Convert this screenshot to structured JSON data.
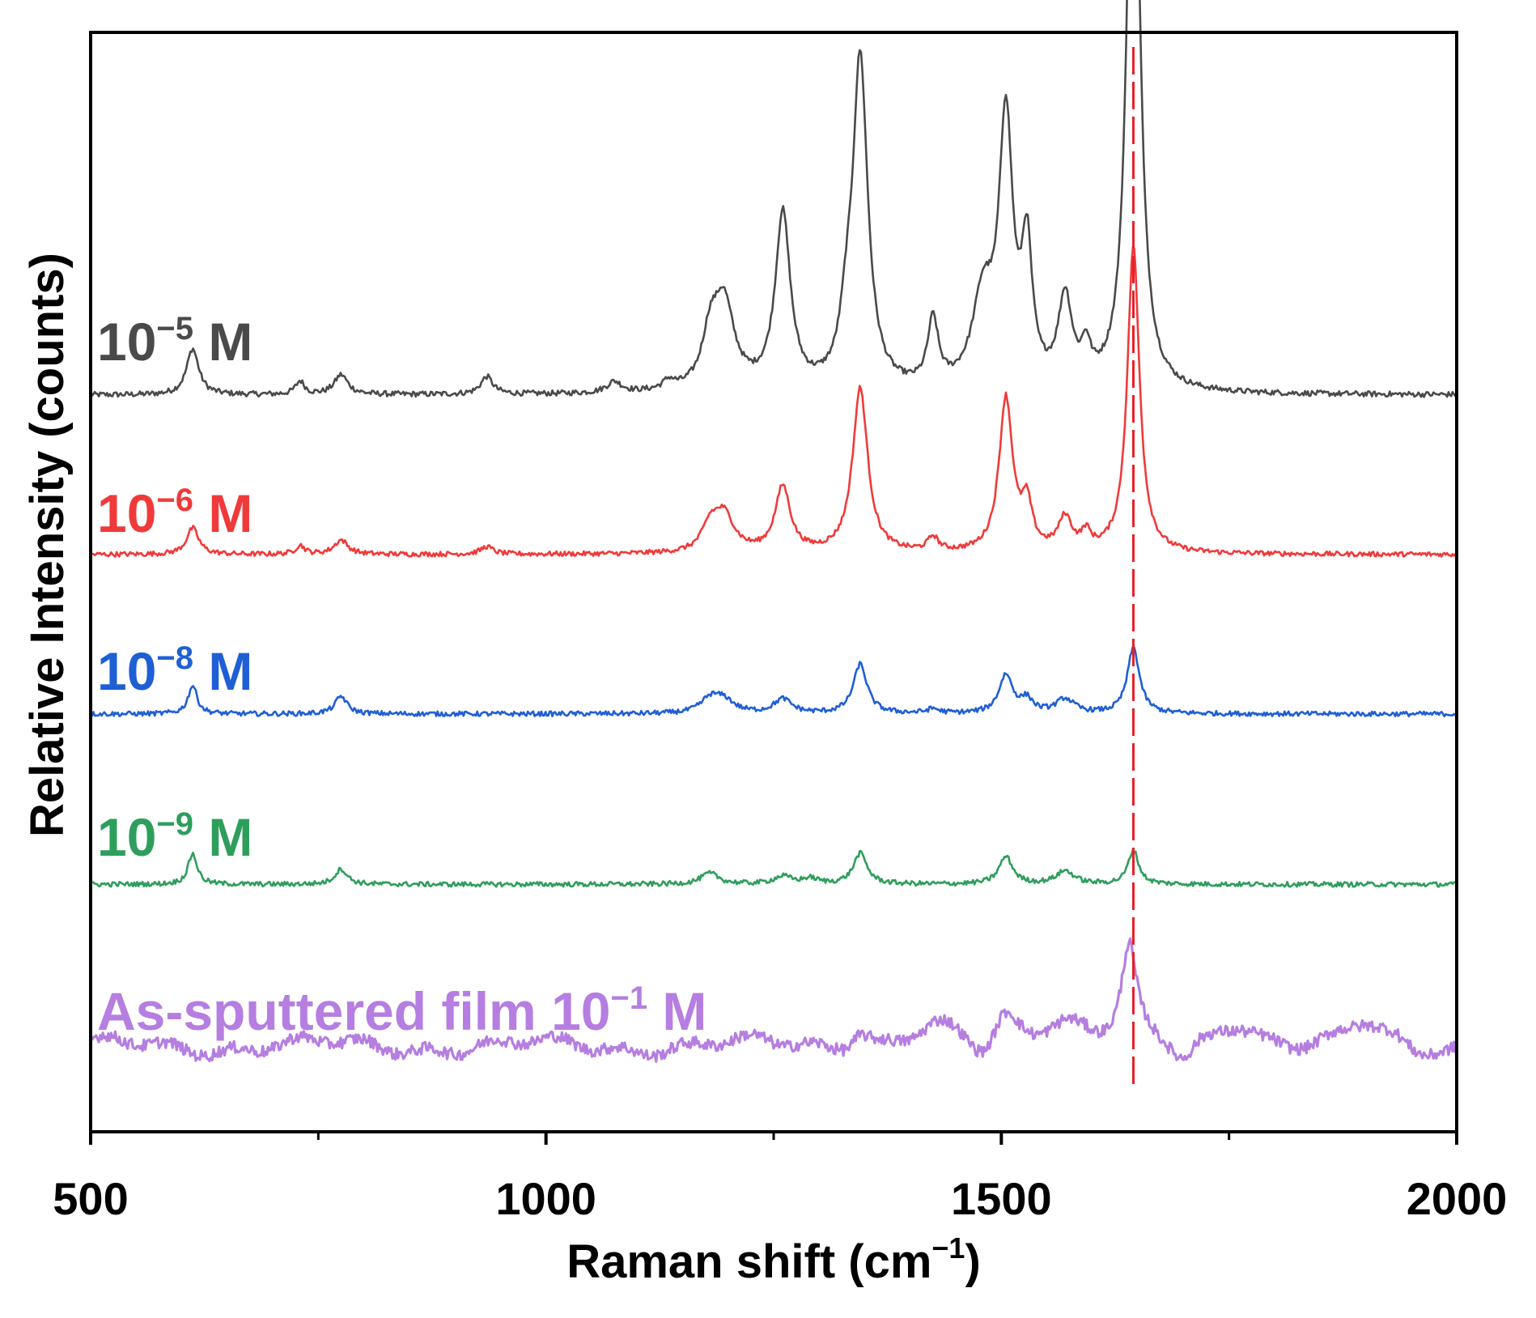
{
  "chart_data": {
    "type": "line",
    "title": "",
    "xlabel": {
      "base": "Raman shift (cm",
      "sup": "−1",
      "tail": ")"
    },
    "ylabel": "Relative Intensity (counts)",
    "xlim": [
      500,
      2000
    ],
    "ylim": [
      0,
      100
    ],
    "xticks": [
      500,
      1000,
      1500,
      2000
    ],
    "xtick_labels": [
      "500",
      "1000",
      "1500",
      "2000"
    ],
    "x_minor_ticks": [
      750,
      1250,
      1750
    ],
    "y_ticks_shown": false,
    "grid": false,
    "reference_line": {
      "x": 1645,
      "color": "#e8202a",
      "style": "dashed"
    },
    "series": [
      {
        "name": "10−5 M",
        "label": {
          "base": "10",
          "sup": "−5",
          "tail": " M"
        },
        "color": "#4a4a4a",
        "baseline": 67,
        "noise": 0.25,
        "peaks": [
          [
            612,
            4.2,
            8
          ],
          [
            730,
            1.2,
            6
          ],
          [
            775,
            1.8,
            9
          ],
          [
            935,
            1.6,
            8
          ],
          [
            1075,
            1.0,
            10
          ],
          [
            1135,
            0.8,
            8
          ],
          [
            1180,
            4,
            10
          ],
          [
            1195,
            8,
            14
          ],
          [
            1260,
            16,
            10
          ],
          [
            1330,
            4,
            8
          ],
          [
            1345,
            30,
            10
          ],
          [
            1425,
            6,
            7
          ],
          [
            1480,
            8,
            14
          ],
          [
            1505,
            24,
            9
          ],
          [
            1528,
            12,
            7
          ],
          [
            1570,
            8,
            9
          ],
          [
            1593,
            3,
            6
          ],
          [
            1645,
            63,
            8
          ]
        ]
      },
      {
        "name": "10−6 M",
        "label": {
          "base": "10",
          "sup": "−6",
          "tail": " M"
        },
        "color": "#f03a3a",
        "baseline": 52.5,
        "noise": 0.22,
        "peaks": [
          [
            612,
            2.4,
            8
          ],
          [
            730,
            0.8,
            6
          ],
          [
            775,
            1.3,
            9
          ],
          [
            935,
            0.7,
            8
          ],
          [
            1180,
            2,
            10
          ],
          [
            1195,
            3.5,
            14
          ],
          [
            1260,
            6,
            10
          ],
          [
            1345,
            15,
            10
          ],
          [
            1425,
            1.3,
            7
          ],
          [
            1505,
            14,
            9
          ],
          [
            1528,
            4,
            7
          ],
          [
            1570,
            3,
            9
          ],
          [
            1593,
            1.5,
            6
          ],
          [
            1645,
            28,
            8
          ]
        ]
      },
      {
        "name": "10−8 M",
        "label": {
          "base": "10",
          "sup": "−8",
          "tail": " M"
        },
        "color": "#1f5fd6",
        "baseline": 38,
        "noise": 0.22,
        "peaks": [
          [
            612,
            2.6,
            6
          ],
          [
            775,
            1.6,
            8
          ],
          [
            1180,
            1.2,
            12
          ],
          [
            1195,
            1.2,
            14
          ],
          [
            1260,
            1.3,
            12
          ],
          [
            1345,
            4.5,
            9
          ],
          [
            1425,
            0.4,
            8
          ],
          [
            1505,
            3.5,
            9
          ],
          [
            1528,
            1.2,
            8
          ],
          [
            1570,
            1.3,
            12
          ],
          [
            1645,
            6,
            8
          ]
        ]
      },
      {
        "name": "10−9 M",
        "label": {
          "base": "10",
          "sup": "−9",
          "tail": " M"
        },
        "color": "#2e9e5c",
        "baseline": 22.5,
        "noise": 0.22,
        "peaks": [
          [
            612,
            2.8,
            6
          ],
          [
            775,
            1.4,
            8
          ],
          [
            1180,
            1.0,
            12
          ],
          [
            1260,
            0.7,
            12
          ],
          [
            1290,
            0.5,
            10
          ],
          [
            1345,
            2.8,
            9
          ],
          [
            1505,
            2.5,
            9
          ],
          [
            1570,
            1.2,
            12
          ],
          [
            1645,
            3.1,
            7
          ]
        ]
      },
      {
        "name": "As-sputtered film 10−1 M",
        "label": {
          "base": "As-sputtered film 10",
          "sup": "−1",
          "tail": " M"
        },
        "color": "#b57ee0",
        "baseline": 7.8,
        "noise": 0.55,
        "wobble": 1.0,
        "peaks": [
          [
            1345,
            1.5,
            12
          ],
          [
            1430,
            1.5,
            30
          ],
          [
            1505,
            2.5,
            15
          ],
          [
            1570,
            2.5,
            35
          ],
          [
            1640,
            8.5,
            10
          ],
          [
            1760,
            2.0,
            30
          ],
          [
            1900,
            1.8,
            30
          ]
        ],
        "dips": [
          [
            1480,
            2.0,
            18
          ],
          [
            1700,
            2.3,
            18
          ],
          [
            1955,
            1.2,
            25
          ]
        ]
      }
    ]
  }
}
